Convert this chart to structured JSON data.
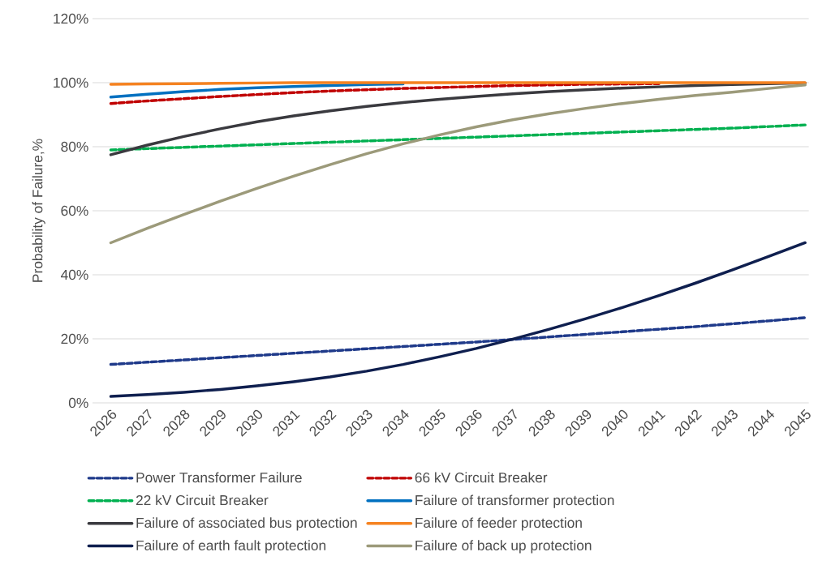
{
  "chart_data": {
    "type": "line",
    "ylabel": "Probability of Failure,%",
    "categories": [
      "2026",
      "2027",
      "2028",
      "2029",
      "2030",
      "2031",
      "2032",
      "2033",
      "2034",
      "2035",
      "2036",
      "2037",
      "2038",
      "2039",
      "2040",
      "2041",
      "2042",
      "2043",
      "2044",
      "2045"
    ],
    "ylim": [
      0,
      120
    ],
    "yticks": [
      {
        "value": 0,
        "label": "0%"
      },
      {
        "value": 20,
        "label": "20%"
      },
      {
        "value": 40,
        "label": "40%"
      },
      {
        "value": 60,
        "label": "60%"
      },
      {
        "value": 80,
        "label": "80%"
      },
      {
        "value": 100,
        "label": "100%"
      },
      {
        "value": 120,
        "label": "120%"
      }
    ],
    "grid": "y",
    "legend": "bottom",
    "marker": "none",
    "series": [
      {
        "name": "Power Transformer Failure",
        "color": "#1f3a8a",
        "line_style": "dashed",
        "values": [
          12,
          12.7,
          13.4,
          14.1,
          14.8,
          15.5,
          16.2,
          16.9,
          17.6,
          18.3,
          19,
          19.8,
          20.6,
          21.4,
          22.2,
          23,
          23.8,
          24.7,
          25.6,
          26.6
        ]
      },
      {
        "name": "66 kV Circuit Breaker",
        "color": "#c00000",
        "line_style": "dashed",
        "values": [
          93.5,
          94.3,
          95,
          95.7,
          96.3,
          96.9,
          97.4,
          97.8,
          98.2,
          98.5,
          98.8,
          99.1,
          99.3,
          99.5,
          99.6,
          99.7,
          null,
          null,
          null,
          null
        ]
      },
      {
        "name": "22 kV Circuit Breaker",
        "color": "#00b050",
        "line_style": "dashed",
        "values": [
          79,
          79.4,
          79.8,
          80.2,
          80.6,
          81,
          81.4,
          81.8,
          82.2,
          82.6,
          83,
          83.4,
          83.8,
          84.2,
          84.6,
          85,
          85.4,
          85.8,
          86.3,
          86.8
        ]
      },
      {
        "name": "Failure of transformer protection",
        "color": "#0070c0",
        "line_style": "solid",
        "values": [
          95.5,
          96.4,
          97.2,
          97.9,
          98.4,
          98.8,
          99.1,
          99.4,
          99.6,
          null,
          null,
          null,
          null,
          null,
          null,
          null,
          null,
          null,
          null,
          null
        ]
      },
      {
        "name": "Failure of associated bus protection",
        "color": "#3a3a3f",
        "line_style": "solid",
        "values": [
          77.5,
          80.5,
          83.2,
          85.6,
          87.8,
          89.6,
          91.2,
          92.6,
          93.8,
          94.8,
          95.7,
          96.5,
          97.2,
          97.8,
          98.3,
          98.7,
          99.1,
          99.4,
          99.7,
          99.9
        ]
      },
      {
        "name": "Failure of feeder  protection",
        "color": "#f58220",
        "line_style": "solid",
        "values": [
          99.5,
          99.6,
          99.7,
          99.8,
          99.9,
          100,
          100,
          100,
          100,
          100,
          100,
          100,
          100,
          100,
          100,
          100,
          100,
          100,
          100,
          100
        ]
      },
      {
        "name": "Failure of earth fault protection",
        "color": "#0f1f4f",
        "line_style": "solid",
        "values": [
          2,
          2.6,
          3.3,
          4.2,
          5.3,
          6.6,
          8.1,
          9.9,
          12,
          14.4,
          17,
          19.9,
          23,
          26.3,
          29.8,
          33.5,
          37.4,
          41.5,
          45.7,
          50
        ]
      },
      {
        "name": "Failure of back up protection",
        "color": "#9c9a7a",
        "line_style": "solid",
        "values": [
          50,
          54.5,
          58.8,
          63,
          67,
          70.8,
          74.4,
          77.8,
          80.9,
          83.7,
          86.2,
          88.4,
          90.3,
          92,
          93.5,
          94.8,
          96,
          97,
          98.2,
          99.3
        ]
      }
    ]
  }
}
